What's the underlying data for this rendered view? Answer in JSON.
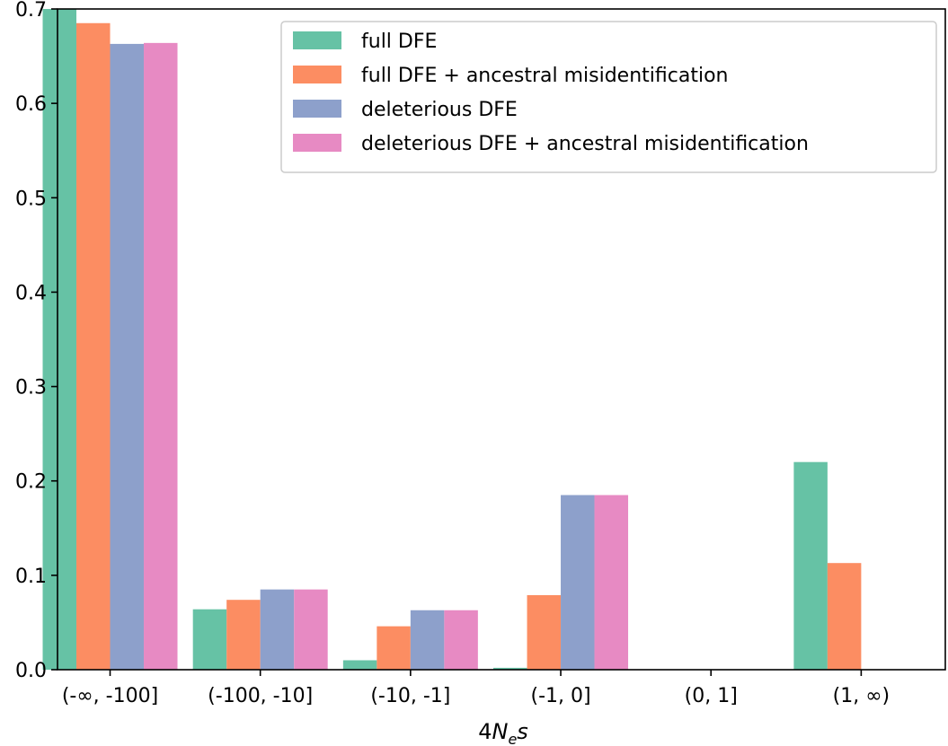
{
  "chart_data": {
    "type": "bar",
    "categories": [
      "(-∞, -100]",
      "(-100, -10]",
      "(-10, -1]",
      "(-1, 0]",
      "(0, 1]",
      "(1, ∞)"
    ],
    "series": [
      {
        "name": "full DFE",
        "color": "#66c2a5",
        "values": [
          0.7,
          0.064,
          0.01,
          0.002,
          0.0,
          0.22
        ]
      },
      {
        "name": "full DFE + ancestral misidentification",
        "color": "#fc8d62",
        "values": [
          0.685,
          0.074,
          0.046,
          0.079,
          0.0,
          0.113
        ]
      },
      {
        "name": "deleterious DFE",
        "color": "#8da0cb",
        "values": [
          0.663,
          0.085,
          0.063,
          0.185,
          0.0,
          0.0
        ]
      },
      {
        "name": "deleterious DFE + ancestral misidentification",
        "color": "#e78ac3",
        "values": [
          0.664,
          0.085,
          0.063,
          0.185,
          0.0,
          0.0
        ]
      }
    ],
    "xlabel": {
      "prefix": "4",
      "N": "N",
      "sub": "e",
      "s": "s"
    },
    "ylabel": "",
    "ylim": [
      0,
      0.7
    ],
    "yticks": [
      "0.0",
      "0.1",
      "0.2",
      "0.3",
      "0.4",
      "0.5",
      "0.6",
      "0.7"
    ],
    "legend_position": "top-right",
    "grid": false
  }
}
